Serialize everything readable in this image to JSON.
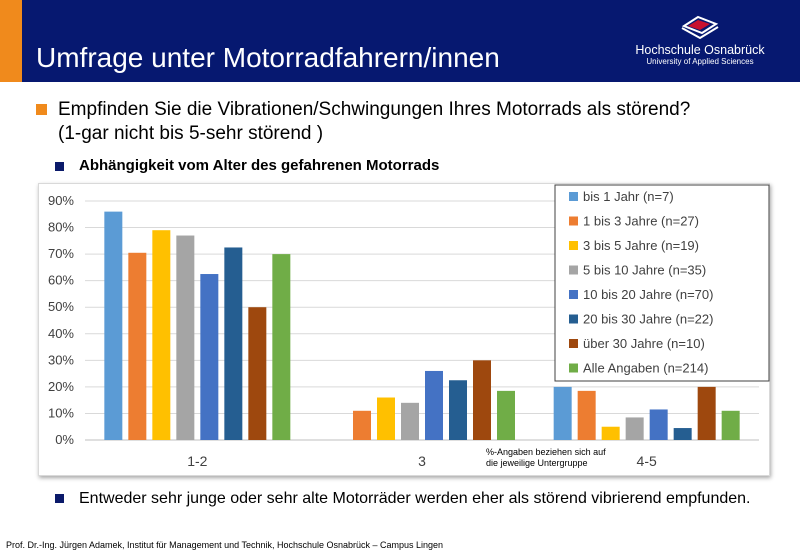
{
  "header": {
    "title": "Umfrage unter Motorradfahrern/innen",
    "logo": {
      "name": "Hochschule Osnabrück",
      "subtitle": "University of Applied Sciences",
      "icon": "university-logo-icon"
    }
  },
  "bullets": {
    "main_line1": "Empfinden Sie die Vibrationen/Schwingungen Ihres Motorrads als störend?",
    "main_line2": "(1-gar nicht bis 5-sehr störend )",
    "sub": "Abhängigkeit vom Alter des gefahrenen Motorrads",
    "bottom": "Entweder sehr junge oder sehr alte Motorräder werden eher als störend vibrierend empfunden."
  },
  "colors": {
    "accent_orange": "#F08A1C",
    "header_navy": "#061870"
  },
  "chart_data": {
    "type": "bar",
    "categories": [
      "1-2",
      "3",
      "4-5"
    ],
    "ylim": [
      0,
      90
    ],
    "y_ticks": [
      "0%",
      "10%",
      "20%",
      "30%",
      "40%",
      "50%",
      "60%",
      "70%",
      "80%",
      "90%"
    ],
    "grid": true,
    "legend_position": "top-right",
    "annotation": "%-Angaben beziehen sich auf die jeweilige Untergruppe",
    "series": [
      {
        "name": "bis 1 Jahr (n=7)",
        "color": "#5B9BD5",
        "values": [
          86,
          0,
          20
        ]
      },
      {
        "name": "1 bis 3 Jahre (n=27)",
        "color": "#ED7D31",
        "values": [
          70.5,
          11,
          18.5
        ]
      },
      {
        "name": "3 bis 5 Jahre (n=19)",
        "color": "#FFC000",
        "values": [
          79,
          16,
          5
        ]
      },
      {
        "name": "5 bis 10 Jahre (n=35)",
        "color": "#A5A5A5",
        "values": [
          77,
          14,
          8.5
        ]
      },
      {
        "name": "10 bis 20 Jahre (n=70)",
        "color": "#4472C4",
        "values": [
          62.5,
          26,
          11.5
        ]
      },
      {
        "name": "20 bis 30 Jahre (n=22)",
        "color": "#255E91",
        "values": [
          72.5,
          22.5,
          4.5
        ]
      },
      {
        "name": "über 30 Jahre (n=10)",
        "color": "#9E480E",
        "values": [
          50,
          30,
          20
        ]
      },
      {
        "name": "Alle Angaben (n=214)",
        "color": "#70AD47",
        "values": [
          70,
          18.5,
          11
        ]
      }
    ]
  },
  "footer": "Prof. Dr.-Ing. Jürgen Adamek, Institut für Management und Technik, Hochschule Osnabrück – Campus Lingen"
}
